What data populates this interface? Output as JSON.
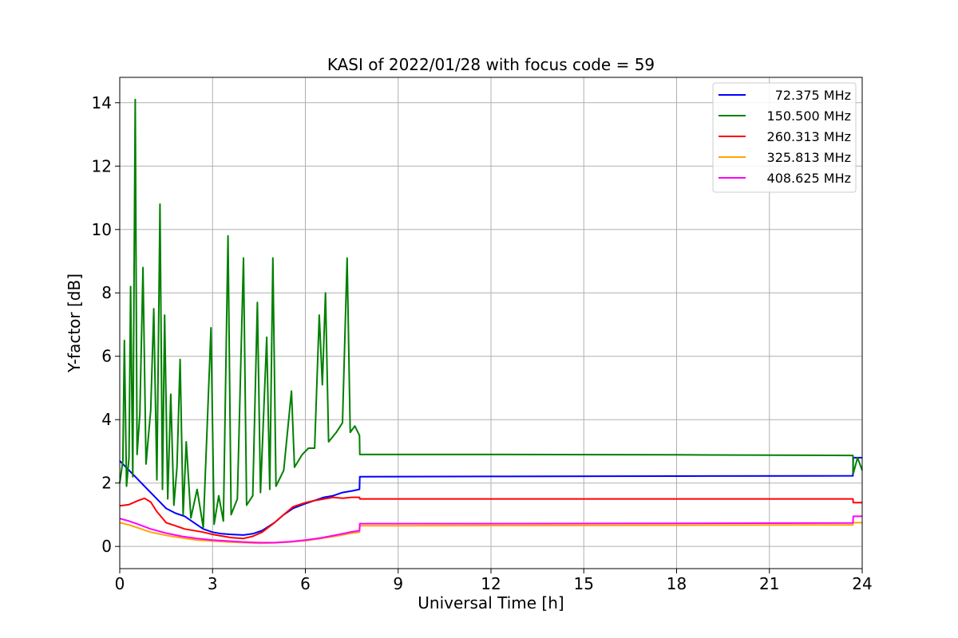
{
  "chart_data": {
    "type": "line",
    "title": "KASI of 2022/01/28 with focus code = 59",
    "xlabel": "Universal Time [h]",
    "ylabel": "Y-factor [dB]",
    "xlim": [
      0,
      24
    ],
    "ylim": [
      -0.7,
      14.8
    ],
    "xticks": [
      0,
      3,
      6,
      9,
      12,
      15,
      18,
      21,
      24
    ],
    "yticks": [
      0,
      2,
      4,
      6,
      8,
      10,
      12,
      14
    ],
    "grid": true,
    "legend_position": "top-right",
    "series": [
      {
        "name": "72.375 MHz",
        "color": "#0000ff",
        "points": [
          [
            0,
            2.7
          ],
          [
            0.2,
            2.5
          ],
          [
            0.5,
            2.2
          ],
          [
            0.8,
            1.9
          ],
          [
            1.2,
            1.5
          ],
          [
            1.5,
            1.2
          ],
          [
            1.8,
            1.05
          ],
          [
            2.1,
            0.95
          ],
          [
            2.4,
            0.75
          ],
          [
            2.7,
            0.55
          ],
          [
            3.0,
            0.45
          ],
          [
            3.3,
            0.4
          ],
          [
            3.6,
            0.38
          ],
          [
            4.0,
            0.36
          ],
          [
            4.3,
            0.4
          ],
          [
            4.6,
            0.5
          ],
          [
            5.0,
            0.75
          ],
          [
            5.3,
            1.0
          ],
          [
            5.6,
            1.2
          ],
          [
            6.0,
            1.35
          ],
          [
            6.3,
            1.45
          ],
          [
            6.6,
            1.55
          ],
          [
            6.9,
            1.6
          ],
          [
            7.2,
            1.7
          ],
          [
            7.5,
            1.75
          ],
          [
            7.75,
            1.8
          ],
          [
            7.76,
            2.2
          ],
          [
            12,
            2.21
          ],
          [
            18,
            2.22
          ],
          [
            23.7,
            2.23
          ],
          [
            23.71,
            2.8
          ],
          [
            24,
            2.8
          ]
        ]
      },
      {
        "name": "150.500 MHz",
        "color": "#008000",
        "points": [
          [
            0,
            2.0
          ],
          [
            0.1,
            2.7
          ],
          [
            0.15,
            6.5
          ],
          [
            0.22,
            1.9
          ],
          [
            0.3,
            2.8
          ],
          [
            0.35,
            8.2
          ],
          [
            0.42,
            2.2
          ],
          [
            0.5,
            14.1
          ],
          [
            0.56,
            2.9
          ],
          [
            0.65,
            4.2
          ],
          [
            0.75,
            8.8
          ],
          [
            0.85,
            2.6
          ],
          [
            1.0,
            4.3
          ],
          [
            1.1,
            7.5
          ],
          [
            1.2,
            2.1
          ],
          [
            1.3,
            10.8
          ],
          [
            1.38,
            1.8
          ],
          [
            1.45,
            7.3
          ],
          [
            1.55,
            1.5
          ],
          [
            1.65,
            4.8
          ],
          [
            1.75,
            1.3
          ],
          [
            1.85,
            2.5
          ],
          [
            1.95,
            5.9
          ],
          [
            2.05,
            1.0
          ],
          [
            2.15,
            3.3
          ],
          [
            2.3,
            0.9
          ],
          [
            2.5,
            1.8
          ],
          [
            2.7,
            0.6
          ],
          [
            2.95,
            6.9
          ],
          [
            3.05,
            0.7
          ],
          [
            3.2,
            1.6
          ],
          [
            3.35,
            0.8
          ],
          [
            3.5,
            9.8
          ],
          [
            3.6,
            1.0
          ],
          [
            3.8,
            1.5
          ],
          [
            4.0,
            9.1
          ],
          [
            4.1,
            1.3
          ],
          [
            4.3,
            1.6
          ],
          [
            4.45,
            7.7
          ],
          [
            4.55,
            1.7
          ],
          [
            4.75,
            6.6
          ],
          [
            4.85,
            1.8
          ],
          [
            4.95,
            9.1
          ],
          [
            5.05,
            1.9
          ],
          [
            5.3,
            2.4
          ],
          [
            5.55,
            4.9
          ],
          [
            5.65,
            2.5
          ],
          [
            5.9,
            2.9
          ],
          [
            6.1,
            3.1
          ],
          [
            6.3,
            3.1
          ],
          [
            6.45,
            7.3
          ],
          [
            6.55,
            5.1
          ],
          [
            6.65,
            8.0
          ],
          [
            6.75,
            3.3
          ],
          [
            7.0,
            3.6
          ],
          [
            7.2,
            3.9
          ],
          [
            7.35,
            9.1
          ],
          [
            7.45,
            3.6
          ],
          [
            7.6,
            3.8
          ],
          [
            7.75,
            3.5
          ],
          [
            7.76,
            2.9
          ],
          [
            12,
            2.9
          ],
          [
            18,
            2.89
          ],
          [
            23.7,
            2.87
          ],
          [
            23.71,
            2.3
          ],
          [
            23.85,
            2.8
          ],
          [
            24,
            2.4
          ]
        ]
      },
      {
        "name": "260.313 MHz",
        "color": "#ff0000",
        "points": [
          [
            0,
            1.28
          ],
          [
            0.3,
            1.32
          ],
          [
            0.6,
            1.45
          ],
          [
            0.8,
            1.52
          ],
          [
            1.0,
            1.4
          ],
          [
            1.2,
            1.1
          ],
          [
            1.5,
            0.75
          ],
          [
            1.8,
            0.65
          ],
          [
            2.1,
            0.55
          ],
          [
            2.4,
            0.5
          ],
          [
            2.7,
            0.45
          ],
          [
            3.0,
            0.38
          ],
          [
            3.3,
            0.33
          ],
          [
            3.6,
            0.28
          ],
          [
            4.0,
            0.25
          ],
          [
            4.3,
            0.32
          ],
          [
            4.6,
            0.45
          ],
          [
            5.0,
            0.75
          ],
          [
            5.3,
            1.0
          ],
          [
            5.6,
            1.25
          ],
          [
            6.0,
            1.38
          ],
          [
            6.3,
            1.45
          ],
          [
            6.6,
            1.5
          ],
          [
            6.9,
            1.55
          ],
          [
            7.2,
            1.52
          ],
          [
            7.5,
            1.55
          ],
          [
            7.75,
            1.55
          ],
          [
            7.76,
            1.5
          ],
          [
            12,
            1.5
          ],
          [
            18,
            1.5
          ],
          [
            23.7,
            1.5
          ],
          [
            23.71,
            1.38
          ],
          [
            24,
            1.38
          ]
        ]
      },
      {
        "name": "325.813 MHz",
        "color": "#ffa500",
        "points": [
          [
            0,
            0.75
          ],
          [
            0.3,
            0.68
          ],
          [
            0.6,
            0.58
          ],
          [
            1.0,
            0.45
          ],
          [
            1.5,
            0.35
          ],
          [
            2.0,
            0.27
          ],
          [
            2.5,
            0.2
          ],
          [
            3.0,
            0.17
          ],
          [
            3.5,
            0.14
          ],
          [
            4.0,
            0.12
          ],
          [
            4.5,
            0.1
          ],
          [
            5.0,
            0.11
          ],
          [
            5.5,
            0.14
          ],
          [
            6.0,
            0.18
          ],
          [
            6.5,
            0.25
          ],
          [
            7.0,
            0.33
          ],
          [
            7.5,
            0.42
          ],
          [
            7.75,
            0.45
          ],
          [
            7.76,
            0.65
          ],
          [
            12,
            0.66
          ],
          [
            18,
            0.67
          ],
          [
            23.7,
            0.68
          ],
          [
            23.71,
            0.75
          ],
          [
            24,
            0.75
          ]
        ]
      },
      {
        "name": "408.625 MHz",
        "color": "#ff00ff",
        "points": [
          [
            0,
            0.88
          ],
          [
            0.3,
            0.8
          ],
          [
            0.6,
            0.7
          ],
          [
            1.0,
            0.55
          ],
          [
            1.5,
            0.42
          ],
          [
            2.0,
            0.32
          ],
          [
            2.5,
            0.25
          ],
          [
            3.0,
            0.2
          ],
          [
            3.5,
            0.17
          ],
          [
            4.0,
            0.14
          ],
          [
            4.5,
            0.12
          ],
          [
            5.0,
            0.12
          ],
          [
            5.5,
            0.15
          ],
          [
            6.0,
            0.2
          ],
          [
            6.5,
            0.27
          ],
          [
            7.0,
            0.36
          ],
          [
            7.5,
            0.46
          ],
          [
            7.75,
            0.5
          ],
          [
            7.76,
            0.72
          ],
          [
            12,
            0.72
          ],
          [
            18,
            0.73
          ],
          [
            23.7,
            0.74
          ],
          [
            23.71,
            0.95
          ],
          [
            24,
            0.95
          ]
        ]
      }
    ]
  }
}
